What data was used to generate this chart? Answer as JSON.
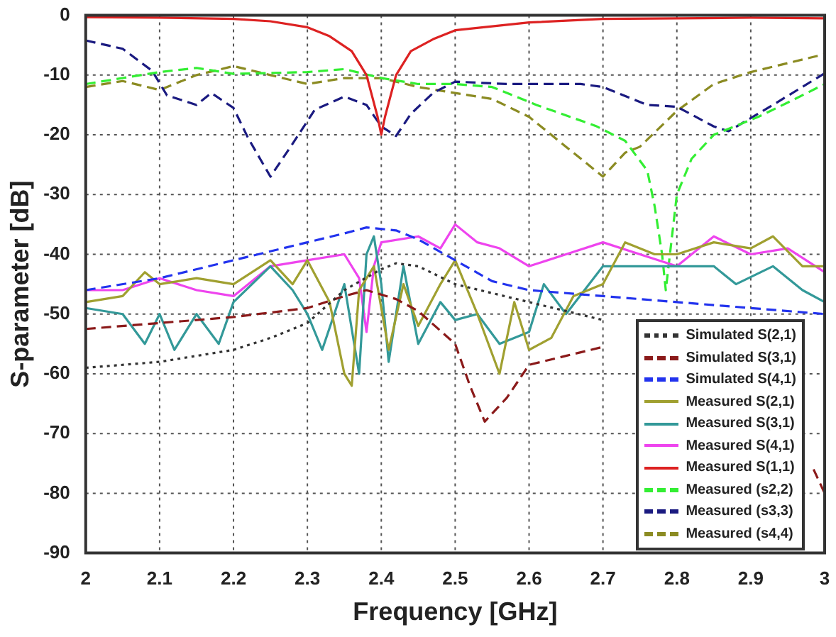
{
  "chart_data": {
    "type": "line",
    "xlabel": "Frequency [GHz]",
    "ylabel": "S-parameter [dB]",
    "xlim": [
      2,
      3
    ],
    "xticks": [
      2,
      2.1,
      2.2,
      2.3,
      2.4,
      2.5,
      2.6,
      2.7,
      2.8,
      2.9,
      3
    ],
    "ylim": [
      -90,
      0
    ],
    "yticks": [
      -90,
      -80,
      -70,
      -60,
      -50,
      -40,
      -30,
      -20,
      -10,
      0
    ],
    "grid": true,
    "legend": "bottom right",
    "marker": "none",
    "series": [
      {
        "name": "Simulated S(2,1)",
        "color": "#333333",
        "line_style": "dotted",
        "x": [
          2,
          2.1,
          2.2,
          2.25,
          2.3,
          2.35,
          2.4,
          2.42,
          2.45,
          2.5,
          2.6,
          2.7
        ],
        "values": [
          -59,
          -58,
          -56,
          -54,
          -51.5,
          -46,
          -42.5,
          -41.5,
          -42,
          -45,
          -48,
          -51
        ]
      },
      {
        "name": "Simulated S(3,1)",
        "color": "#8b1a1a",
        "line_style": "dashed",
        "x": [
          2,
          2.1,
          2.2,
          2.3,
          2.35,
          2.38,
          2.42,
          2.45,
          2.5,
          2.52,
          2.54,
          2.57,
          2.6,
          2.65,
          2.7,
          2.85,
          2.985,
          3
        ],
        "values": [
          -52.5,
          -51.5,
          -50.5,
          -49,
          -47,
          -46,
          -47.5,
          -49.5,
          -55,
          -62,
          -68,
          -64,
          -58.5,
          -57,
          -55.5,
          null,
          -76,
          -80
        ]
      },
      {
        "name": "Simulated S(4,1)",
        "color": "#2233ee",
        "line_style": "dashed",
        "x": [
          2,
          2.1,
          2.2,
          2.3,
          2.35,
          2.38,
          2.42,
          2.45,
          2.5,
          2.55,
          2.6,
          2.7,
          2.8,
          2.9,
          3
        ],
        "values": [
          -46,
          -44,
          -41,
          -38,
          -36.5,
          -35.5,
          -36,
          -37.5,
          -41,
          -44.5,
          -46,
          -47,
          -48,
          -49,
          -50
        ]
      },
      {
        "name": "Measured S(2,1)",
        "color": "#a0a030",
        "line_style": "solid",
        "x": [
          2,
          2.05,
          2.08,
          2.1,
          2.15,
          2.2,
          2.25,
          2.28,
          2.3,
          2.33,
          2.35,
          2.36,
          2.37,
          2.39,
          2.41,
          2.43,
          2.45,
          2.48,
          2.5,
          2.53,
          2.56,
          2.58,
          2.6,
          2.63,
          2.66,
          2.7,
          2.73,
          2.77,
          2.8,
          2.85,
          2.9,
          2.93,
          2.97,
          3
        ],
        "values": [
          -48,
          -47,
          -43,
          -45,
          -44,
          -45,
          -41,
          -45,
          -41,
          -48,
          -60,
          -62,
          -46,
          -42,
          -56,
          -45,
          -52,
          -45,
          -41,
          -50,
          -60,
          -48,
          -56,
          -54,
          -47,
          -45,
          -38,
          -40,
          -40,
          -38,
          -39,
          -37,
          -42,
          -42
        ]
      },
      {
        "name": "Measured S(3,1)",
        "color": "#339999",
        "line_style": "solid",
        "x": [
          2,
          2.05,
          2.08,
          2.1,
          2.12,
          2.15,
          2.18,
          2.2,
          2.25,
          2.28,
          2.3,
          2.32,
          2.35,
          2.37,
          2.38,
          2.39,
          2.4,
          2.41,
          2.43,
          2.45,
          2.48,
          2.5,
          2.53,
          2.56,
          2.6,
          2.62,
          2.65,
          2.7,
          2.85,
          2.88,
          2.93,
          2.97,
          3
        ],
        "values": [
          -49,
          -50,
          -55,
          -50,
          -56,
          -50,
          -55,
          -48,
          -42,
          -46,
          -50,
          -56,
          -45,
          -60,
          -40,
          -37,
          -45,
          -58,
          -42,
          -55,
          -48,
          -51,
          -50,
          -55,
          -53,
          -45,
          -50,
          -42,
          -42,
          -45,
          -42,
          -46,
          -48
        ]
      },
      {
        "name": "Measured S(4,1)",
        "color": "#ee44ee",
        "line_style": "solid",
        "x": [
          2,
          2.05,
          2.1,
          2.15,
          2.2,
          2.25,
          2.3,
          2.35,
          2.37,
          2.38,
          2.39,
          2.4,
          2.45,
          2.48,
          2.5,
          2.53,
          2.56,
          2.6,
          2.65,
          2.7,
          2.75,
          2.8,
          2.85,
          2.9,
          2.95,
          3
        ],
        "values": [
          -46,
          -46,
          -44,
          -46,
          -47,
          -42,
          -41,
          -40,
          -44,
          -53,
          -42,
          -38,
          -37,
          -39,
          -35,
          -38,
          -39,
          -42,
          -40,
          -38,
          -40,
          -42,
          -37,
          -40,
          -39,
          -43
        ]
      },
      {
        "name": "Measured S(1,1)",
        "color": "#dd2222",
        "line_style": "solid",
        "x": [
          2,
          2.1,
          2.2,
          2.25,
          2.3,
          2.33,
          2.36,
          2.38,
          2.395,
          2.4,
          2.405,
          2.42,
          2.44,
          2.47,
          2.5,
          2.6,
          2.7,
          2.8,
          2.9,
          3
        ],
        "values": [
          -0.3,
          -0.4,
          -0.6,
          -1,
          -2,
          -3.5,
          -6,
          -10,
          -17,
          -20,
          -17,
          -10,
          -6,
          -4,
          -2.5,
          -1.2,
          -0.6,
          -0.5,
          -0.4,
          -0.5
        ]
      },
      {
        "name": "Measured (s2,2)",
        "color": "#33ee33",
        "line_style": "dashed",
        "x": [
          2,
          2.05,
          2.1,
          2.15,
          2.2,
          2.3,
          2.35,
          2.4,
          2.45,
          2.5,
          2.55,
          2.61,
          2.69,
          2.73,
          2.76,
          2.77,
          2.78,
          2.785,
          2.8,
          2.82,
          2.85,
          2.91,
          2.96,
          3
        ],
        "values": [
          -11.5,
          -10.5,
          -9.5,
          -8.8,
          -9.8,
          -9.5,
          -9,
          -10.5,
          -11.5,
          -11.5,
          -12,
          -15,
          -18.5,
          -21,
          -26,
          -32,
          -40,
          -46,
          -30,
          -24,
          -20,
          -17,
          -14,
          -11.5
        ]
      },
      {
        "name": "Measured (s3,3)",
        "color": "#1a1a80",
        "line_style": "dashed",
        "x": [
          2,
          2.05,
          2.09,
          2.11,
          2.15,
          2.17,
          2.2,
          2.22,
          2.25,
          2.28,
          2.31,
          2.35,
          2.38,
          2.4,
          2.42,
          2.44,
          2.47,
          2.5,
          2.57,
          2.67,
          2.7,
          2.76,
          2.8,
          2.85,
          2.87,
          2.93,
          3
        ],
        "values": [
          -4.2,
          -5.6,
          -9.3,
          -13.4,
          -15,
          -13,
          -15.5,
          -20.6,
          -27,
          -21.5,
          -15.8,
          -13.6,
          -15,
          -18.6,
          -20.2,
          -16.5,
          -13,
          -11.1,
          -11.5,
          -11.5,
          -12,
          -15,
          -15.3,
          -18.6,
          -19.4,
          -15,
          -9.7
        ]
      },
      {
        "name": "Measured (s4,4)",
        "color": "#8b8b22",
        "line_style": "dashed",
        "x": [
          2,
          2.05,
          2.1,
          2.15,
          2.2,
          2.25,
          2.3,
          2.35,
          2.4,
          2.45,
          2.5,
          2.55,
          2.6,
          2.65,
          2.7,
          2.73,
          2.75,
          2.8,
          2.85,
          2.9,
          2.95,
          3
        ],
        "values": [
          -12,
          -11,
          -12.5,
          -10,
          -8.5,
          -10,
          -11.5,
          -10.5,
          -10.5,
          -12,
          -13,
          -14,
          -17,
          -22,
          -27,
          -23,
          -22,
          -16,
          -11.5,
          -9.5,
          -8,
          -6.5
        ]
      }
    ]
  }
}
